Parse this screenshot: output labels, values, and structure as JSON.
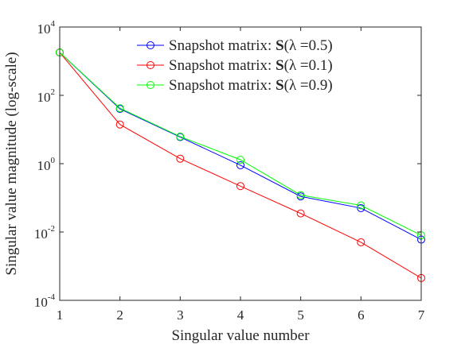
{
  "chart_data": {
    "type": "line",
    "xlabel": "Singular value number",
    "ylabel": "Singular value magnitude (log-scale)",
    "x": [
      1,
      2,
      3,
      4,
      5,
      6,
      7
    ],
    "xlim": [
      1,
      7
    ],
    "ylim": [
      0.0001,
      10000
    ],
    "yscale": "log",
    "x_ticks": [
      "1",
      "2",
      "3",
      "4",
      "5",
      "6",
      "7"
    ],
    "y_ticks": [
      {
        "base": "10",
        "exp": "-4"
      },
      {
        "base": "10",
        "exp": "-2"
      },
      {
        "base": "10",
        "exp": "0"
      },
      {
        "base": "10",
        "exp": "2"
      },
      {
        "base": "10",
        "exp": "4"
      }
    ],
    "grid": false,
    "legend_position": "top-right",
    "series": [
      {
        "legend_prefix": "Snapshot matrix: ",
        "legend_bold": "S",
        "legend_math": "(λ =0.5)",
        "color": "#0000ff",
        "values": [
          1800,
          40,
          6,
          0.9,
          0.11,
          0.05,
          0.006
        ]
      },
      {
        "legend_prefix": "Snapshot matrix: ",
        "legend_bold": "S",
        "legend_math": "(λ =0.1)",
        "color": "#ff0000",
        "values": [
          1800,
          14,
          1.4,
          0.22,
          0.035,
          0.005,
          0.00045
        ]
      },
      {
        "legend_prefix": "Snapshot matrix: ",
        "legend_bold": "S",
        "legend_math": "(λ =0.9)",
        "color": "#00ff00",
        "values": [
          1800,
          42,
          6.2,
          1.3,
          0.12,
          0.06,
          0.008
        ]
      }
    ]
  }
}
